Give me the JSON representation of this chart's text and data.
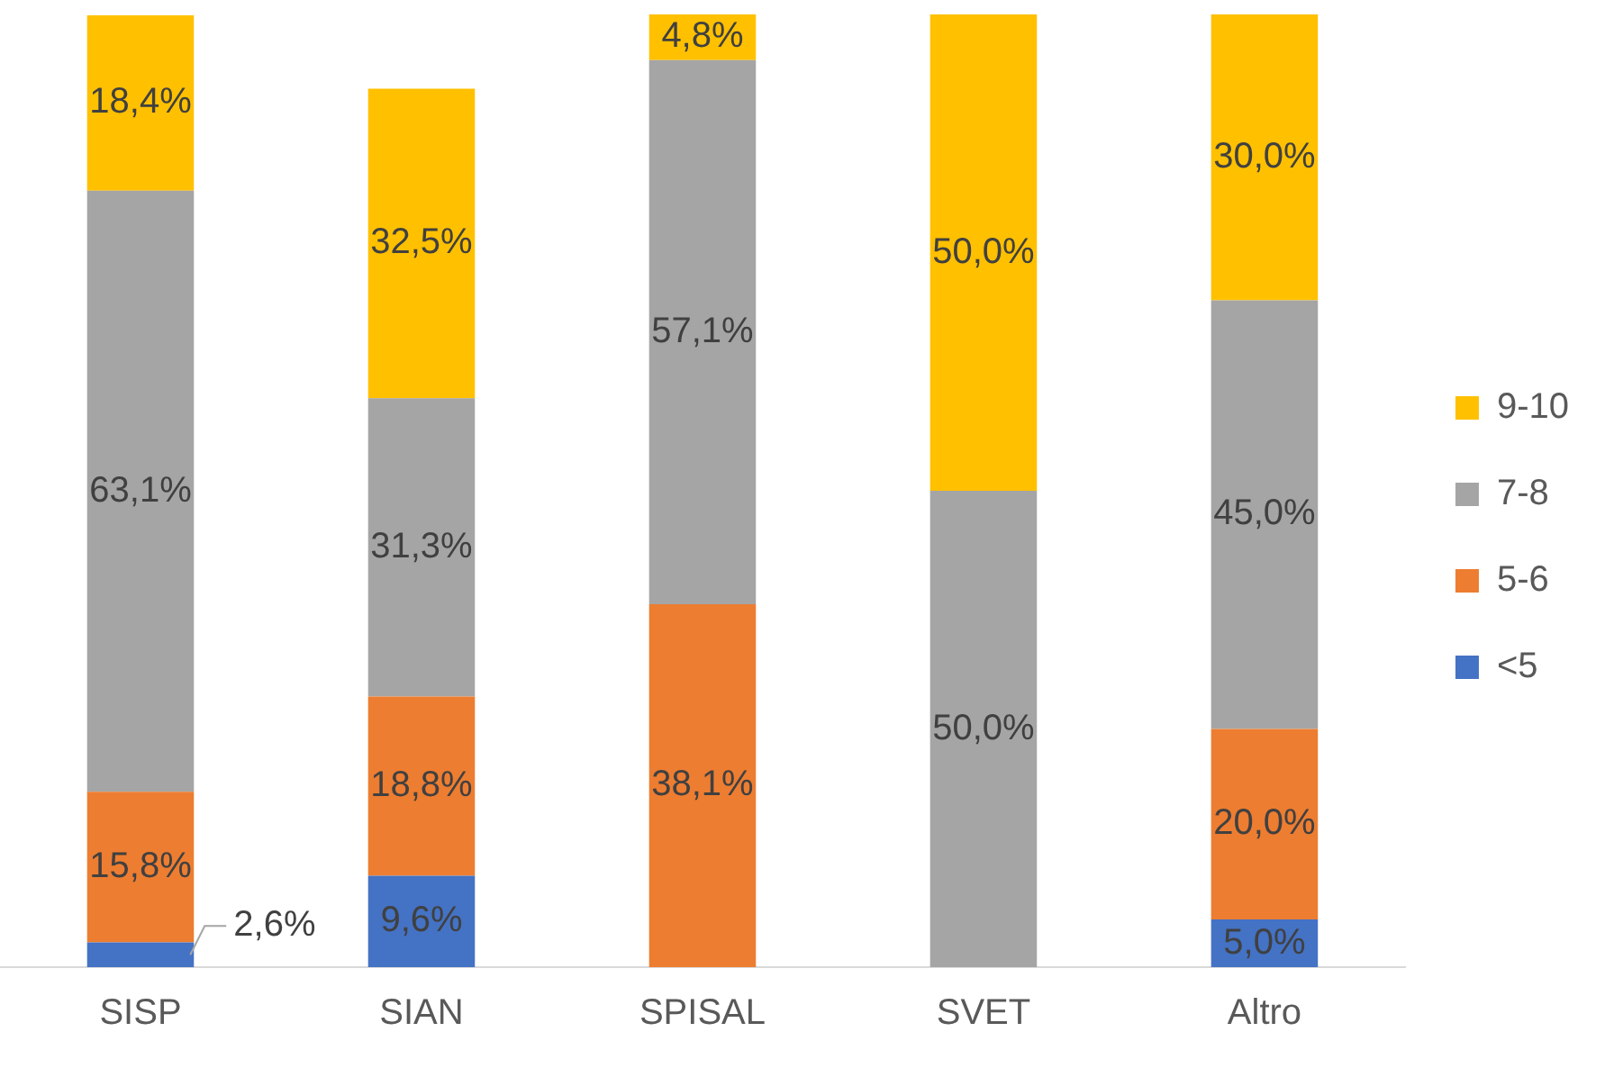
{
  "chart_data": {
    "type": "bar",
    "stacked": true,
    "categories": [
      "SISP",
      "SIAN",
      "SPISAL",
      "SVET",
      "Altro"
    ],
    "series": [
      {
        "name": "<5",
        "color": "#4472c4",
        "values": [
          2.6,
          9.6,
          null,
          null,
          5.0
        ],
        "value_labels": [
          "2,6%",
          "9,6%",
          null,
          null,
          "5,0%"
        ]
      },
      {
        "name": "5-6",
        "color": "#ed7d31",
        "values": [
          15.8,
          18.8,
          38.1,
          null,
          20.0
        ],
        "value_labels": [
          "15,8%",
          "18,8%",
          "38,1%",
          null,
          "20,0%"
        ]
      },
      {
        "name": "7-8",
        "color": "#a5a5a5",
        "values": [
          63.1,
          31.3,
          57.1,
          50.0,
          45.0
        ],
        "value_labels": [
          "63,1%",
          "31,3%",
          "57,1%",
          "50,0%",
          "45,0%"
        ]
      },
      {
        "name": "9-10",
        "color": "#ffc000",
        "values": [
          18.4,
          32.5,
          4.8,
          50.0,
          30.0
        ],
        "value_labels": [
          "18,4%",
          "32,5%",
          "4,8%",
          "50,0%",
          "30,0%"
        ]
      }
    ],
    "ylim": [
      0,
      100
    ],
    "tick_labels": "x",
    "grid": false,
    "legend": "right"
  }
}
